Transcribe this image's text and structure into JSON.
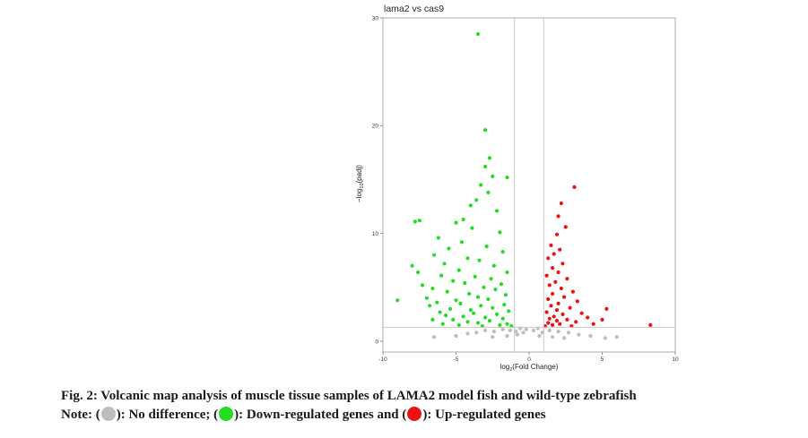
{
  "chart_data": {
    "type": "scatter",
    "title": "lama2 vs cas9",
    "xlabel_main": "log",
    "xlabel_sub": "2",
    "xlabel_rest": "(Fold Change)",
    "ylabel_main": "−log",
    "ylabel_sub": "10",
    "ylabel_rest": "(padj)",
    "xlim": [
      -10,
      10
    ],
    "ylim": [
      -1,
      30
    ],
    "x_ticks": [
      "-10",
      "-5",
      "0",
      "5",
      "10"
    ],
    "y_ticks": [
      "0",
      "10",
      "20",
      "30"
    ],
    "x_tick_values": [
      -10,
      -5,
      0,
      5,
      10
    ],
    "y_tick_values": [
      0,
      10,
      20,
      30
    ],
    "thresholds": {
      "log2fc": [
        -1,
        1
      ],
      "neg_log10_padj": 1.3
    },
    "grid": false,
    "colors": {
      "no_difference": "#bdbdbd",
      "down": "#22dd22",
      "up": "#ee1111"
    },
    "series": [
      {
        "key": "down",
        "points": [
          [
            -3.5,
            28.5
          ],
          [
            -3.0,
            19.6
          ],
          [
            -2.7,
            17.0
          ],
          [
            -3.0,
            16.2
          ],
          [
            -2.5,
            15.3
          ],
          [
            -1.5,
            15.2
          ],
          [
            -3.3,
            14.5
          ],
          [
            -2.8,
            13.8
          ],
          [
            -3.6,
            13.1
          ],
          [
            -4.0,
            12.6
          ],
          [
            -2.2,
            12.1
          ],
          [
            -4.5,
            11.3
          ],
          [
            -7.5,
            11.2
          ],
          [
            -7.8,
            11.1
          ],
          [
            -5.0,
            11.0
          ],
          [
            -3.9,
            10.5
          ],
          [
            -2.0,
            10.1
          ],
          [
            -6.2,
            9.6
          ],
          [
            -4.6,
            9.2
          ],
          [
            -2.9,
            8.8
          ],
          [
            -5.5,
            8.6
          ],
          [
            -1.8,
            8.3
          ],
          [
            -6.5,
            8.0
          ],
          [
            -4.2,
            7.7
          ],
          [
            -3.4,
            7.5
          ],
          [
            -5.8,
            7.2
          ],
          [
            -2.4,
            7.0
          ],
          [
            -8.0,
            7.0
          ],
          [
            -7.6,
            6.4
          ],
          [
            -4.8,
            6.6
          ],
          [
            -1.5,
            6.4
          ],
          [
            -6.0,
            6.1
          ],
          [
            -3.7,
            6.0
          ],
          [
            -2.6,
            5.8
          ],
          [
            -5.2,
            5.6
          ],
          [
            -4.4,
            5.4
          ],
          [
            -1.9,
            5.3
          ],
          [
            -7.3,
            5.2
          ],
          [
            -3.1,
            5.0
          ],
          [
            -6.6,
            4.9
          ],
          [
            -2.3,
            4.8
          ],
          [
            -5.6,
            4.6
          ],
          [
            -4.1,
            4.4
          ],
          [
            -1.6,
            4.3
          ],
          [
            -3.5,
            4.1
          ],
          [
            -7.0,
            4.0
          ],
          [
            -2.8,
            3.9
          ],
          [
            -5.0,
            3.8
          ],
          [
            -9.0,
            3.8
          ],
          [
            -6.3,
            3.6
          ],
          [
            -4.7,
            3.5
          ],
          [
            -1.7,
            3.4
          ],
          [
            -3.3,
            3.3
          ],
          [
            -6.8,
            3.3
          ],
          [
            -2.5,
            3.1
          ],
          [
            -5.4,
            3.0
          ],
          [
            -4.0,
            2.9
          ],
          [
            -1.4,
            2.8
          ],
          [
            -6.1,
            2.7
          ],
          [
            -3.8,
            2.6
          ],
          [
            -2.2,
            2.5
          ],
          [
            -5.7,
            2.4
          ],
          [
            -4.5,
            2.3
          ],
          [
            -3.0,
            2.2
          ],
          [
            -1.8,
            2.1
          ],
          [
            -5.2,
            2.0
          ],
          [
            -6.6,
            2.0
          ],
          [
            -2.7,
            1.9
          ],
          [
            -4.2,
            1.8
          ],
          [
            -3.5,
            1.7
          ],
          [
            -1.5,
            1.6
          ],
          [
            -5.9,
            1.6
          ],
          [
            -2.0,
            1.5
          ],
          [
            -4.8,
            1.5
          ],
          [
            -3.2,
            1.4
          ],
          [
            -1.2,
            1.4
          ]
        ]
      },
      {
        "key": "up",
        "points": [
          [
            3.1,
            14.3
          ],
          [
            2.2,
            12.8
          ],
          [
            2.0,
            11.6
          ],
          [
            2.5,
            10.6
          ],
          [
            1.9,
            9.9
          ],
          [
            1.5,
            8.9
          ],
          [
            2.1,
            8.5
          ],
          [
            1.7,
            8.1
          ],
          [
            1.3,
            7.7
          ],
          [
            2.3,
            7.2
          ],
          [
            1.6,
            6.8
          ],
          [
            2.0,
            6.4
          ],
          [
            1.2,
            6.1
          ],
          [
            2.6,
            5.8
          ],
          [
            1.8,
            5.5
          ],
          [
            1.4,
            5.2
          ],
          [
            2.2,
            4.9
          ],
          [
            3.0,
            4.6
          ],
          [
            1.6,
            4.4
          ],
          [
            2.4,
            4.1
          ],
          [
            1.3,
            3.9
          ],
          [
            3.3,
            3.7
          ],
          [
            2.0,
            3.5
          ],
          [
            1.5,
            3.3
          ],
          [
            2.8,
            3.1
          ],
          [
            1.9,
            2.9
          ],
          [
            5.3,
            3.0
          ],
          [
            1.2,
            2.7
          ],
          [
            3.6,
            2.6
          ],
          [
            2.3,
            2.5
          ],
          [
            1.7,
            2.3
          ],
          [
            4.0,
            2.2
          ],
          [
            1.4,
            2.1
          ],
          [
            2.6,
            2.0
          ],
          [
            5.0,
            2.0
          ],
          [
            1.9,
            1.9
          ],
          [
            3.2,
            1.8
          ],
          [
            1.3,
            1.7
          ],
          [
            2.1,
            1.6
          ],
          [
            4.4,
            1.6
          ],
          [
            1.6,
            1.5
          ],
          [
            8.3,
            1.5
          ],
          [
            2.9,
            1.4
          ],
          [
            1.1,
            1.4
          ]
        ]
      },
      {
        "key": "no_difference",
        "points": [
          [
            -0.2,
            1.1
          ],
          [
            -0.6,
            1.2
          ],
          [
            -0.9,
            0.9
          ],
          [
            -0.4,
            0.8
          ],
          [
            0.3,
            1.0
          ],
          [
            0.6,
            1.2
          ],
          [
            0.9,
            0.8
          ],
          [
            -1.3,
            1.0
          ],
          [
            -1.8,
            1.1
          ],
          [
            -2.4,
            0.9
          ],
          [
            -3.0,
            1.0
          ],
          [
            -3.6,
            0.8
          ],
          [
            -4.2,
            0.7
          ],
          [
            -5.0,
            0.5
          ],
          [
            -6.5,
            0.4
          ],
          [
            1.4,
            1.0
          ],
          [
            2.0,
            0.9
          ],
          [
            2.7,
            0.8
          ],
          [
            3.4,
            0.6
          ],
          [
            4.2,
            0.5
          ],
          [
            5.2,
            0.3
          ],
          [
            6.0,
            0.4
          ],
          [
            -0.8,
            0.6
          ],
          [
            0.7,
            0.5
          ],
          [
            -1.5,
            0.5
          ],
          [
            1.6,
            0.4
          ],
          [
            -2.5,
            0.4
          ],
          [
            2.4,
            0.3
          ]
        ]
      }
    ]
  },
  "caption": {
    "line1": "Fig. 2: Volcanic map analysis of muscle tissue samples of LAMA2 model fish and wild-type zebrafish",
    "line2_prefix": "Note: (",
    "line2_nodiff": "): No difference; (",
    "line2_down": "): Down-regulated genes and (",
    "line2_up": "): Up-regulated genes"
  }
}
